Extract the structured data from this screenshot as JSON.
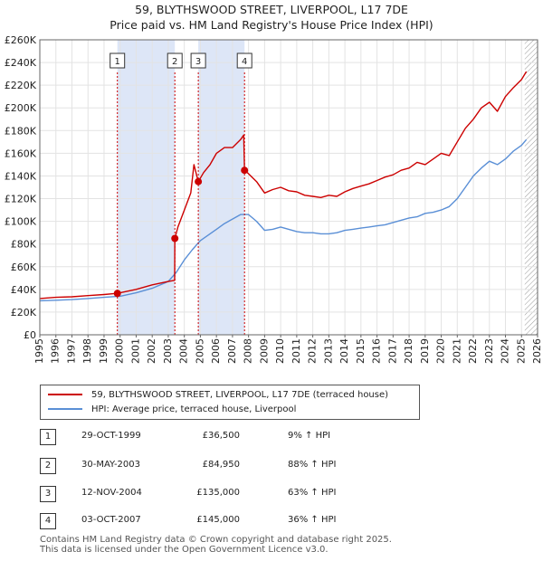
{
  "title_line1": "59, BLYTHSWOOD STREET, LIVERPOOL, L17 7DE",
  "title_line2": "Price paid vs. HM Land Registry's House Price Index (HPI)",
  "chart_data": {
    "type": "line",
    "title": "Price paid vs. HM Land Registry's House Price Index (HPI)",
    "xlim": [
      1995,
      2026
    ],
    "ylim": [
      0,
      260000
    ],
    "y_ticks": [
      0,
      20000,
      40000,
      60000,
      80000,
      100000,
      120000,
      140000,
      160000,
      180000,
      200000,
      220000,
      240000,
      260000
    ],
    "y_tick_labels": [
      "£0",
      "£20K",
      "£40K",
      "£60K",
      "£80K",
      "£100K",
      "£120K",
      "£140K",
      "£160K",
      "£180K",
      "£200K",
      "£220K",
      "£240K",
      "£260K"
    ],
    "x_ticks": [
      1995,
      1996,
      1997,
      1998,
      1999,
      2000,
      2001,
      2002,
      2003,
      2004,
      2005,
      2006,
      2007,
      2008,
      2009,
      2010,
      2011,
      2012,
      2013,
      2014,
      2015,
      2016,
      2017,
      2018,
      2019,
      2020,
      2021,
      2022,
      2023,
      2024,
      2025,
      2026
    ],
    "shaded_ranges": [
      [
        1999.83,
        2003.41
      ],
      [
        2004.87,
        2007.75
      ]
    ],
    "future_hatch_from": 2025.2,
    "series": [
      {
        "name": "59, BLYTHSWOOD STREET, LIVERPOOL, L17 7DE (terraced house)",
        "color": "#cc0000",
        "x": [
          1995,
          1996,
          1997,
          1998,
          1999,
          1999.83,
          2000,
          2001,
          2002,
          2003,
          2003.4,
          2003.41,
          2003.6,
          2004,
          2004.4,
          2004.6,
          2004.87,
          2005.2,
          2005.6,
          2006,
          2006.5,
          2007,
          2007.5,
          2007.7,
          2007.75,
          2008,
          2008.5,
          2009,
          2009.5,
          2010,
          2010.5,
          2011,
          2011.5,
          2012,
          2012.5,
          2013,
          2013.5,
          2014,
          2014.5,
          2015,
          2015.5,
          2016,
          2016.5,
          2017,
          2017.5,
          2018,
          2018.5,
          2019,
          2019.5,
          2020,
          2020.5,
          2021,
          2021.5,
          2022,
          2022.5,
          2023,
          2023.5,
          2024,
          2024.5,
          2025,
          2025.3
        ],
        "y": [
          32000,
          33000,
          33500,
          34500,
          35500,
          36500,
          37000,
          40000,
          44000,
          47000,
          48000,
          84950,
          95000,
          110000,
          125000,
          150000,
          135000,
          143000,
          150000,
          160000,
          165000,
          165000,
          172000,
          176000,
          145000,
          142000,
          135000,
          125000,
          128000,
          130000,
          127000,
          126000,
          123000,
          122000,
          121000,
          123000,
          122000,
          126000,
          129000,
          131000,
          133000,
          136000,
          139000,
          141000,
          145000,
          147000,
          152000,
          150000,
          155000,
          160000,
          158000,
          170000,
          182000,
          190000,
          200000,
          205000,
          197000,
          210000,
          218000,
          225000,
          232000
        ]
      },
      {
        "name": "HPI: Average price, terraced house, Liverpool",
        "color": "#5a8fd6",
        "x": [
          1995,
          1996,
          1997,
          1998,
          1999,
          2000,
          2001,
          2002,
          2003,
          2003.5,
          2004,
          2004.5,
          2005,
          2005.5,
          2006,
          2006.5,
          2007,
          2007.5,
          2008,
          2008.5,
          2009,
          2009.5,
          2010,
          2010.5,
          2011,
          2011.5,
          2012,
          2012.5,
          2013,
          2013.5,
          2014,
          2014.5,
          2015,
          2015.5,
          2016,
          2016.5,
          2017,
          2017.5,
          2018,
          2018.5,
          2019,
          2019.5,
          2020,
          2020.5,
          2021,
          2021.5,
          2022,
          2022.5,
          2023,
          2023.5,
          2024,
          2024.5,
          2025,
          2025.3
        ],
        "y": [
          30000,
          30500,
          31000,
          32000,
          33000,
          34000,
          37000,
          41000,
          47000,
          55000,
          66000,
          75000,
          83000,
          88000,
          93000,
          98000,
          102000,
          106000,
          106000,
          100000,
          92000,
          93000,
          95000,
          93000,
          91000,
          90000,
          90000,
          89000,
          89000,
          90000,
          92000,
          93000,
          94000,
          95000,
          96000,
          97000,
          99000,
          101000,
          103000,
          104000,
          107000,
          108000,
          110000,
          113000,
          120000,
          130000,
          140000,
          147000,
          153000,
          150000,
          155000,
          162000,
          167000,
          172000
        ]
      }
    ],
    "transactions": [
      {
        "label": "1",
        "x": 1999.83,
        "price": 36500
      },
      {
        "label": "2",
        "x": 2003.41,
        "price": 84950
      },
      {
        "label": "3",
        "x": 2004.87,
        "price": 135000
      },
      {
        "label": "4",
        "x": 2007.75,
        "price": 145000
      }
    ]
  },
  "legend": {
    "red_label": "59, BLYTHSWOOD STREET, LIVERPOOL, L17 7DE (terraced house)",
    "blue_label": "HPI: Average price, terraced house, Liverpool"
  },
  "transactions_table": [
    {
      "num": "1",
      "date": "29-OCT-1999",
      "price": "£36,500",
      "hpi": "9% ↑ HPI"
    },
    {
      "num": "2",
      "date": "30-MAY-2003",
      "price": "£84,950",
      "hpi": "88% ↑ HPI"
    },
    {
      "num": "3",
      "date": "12-NOV-2004",
      "price": "£135,000",
      "hpi": "63% ↑ HPI"
    },
    {
      "num": "4",
      "date": "03-OCT-2007",
      "price": "£145,000",
      "hpi": "36% ↑ HPI"
    }
  ],
  "footer_line1": "Contains HM Land Registry data © Crown copyright and database right 2025.",
  "footer_line2": "This data is licensed under the Open Government Licence v3.0."
}
